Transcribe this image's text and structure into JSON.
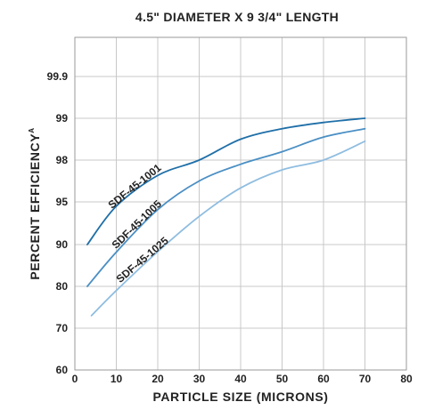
{
  "chart_data": {
    "type": "line",
    "title": "4.5\" DIAMETER X 9 3/4\" LENGTH",
    "xlabel": "PARTICLE SIZE (MICRONS)",
    "ylabel": "PERCENT EFFICIENCY",
    "ylabel_superscript": "A",
    "xlim": [
      0,
      80
    ],
    "x_ticks": [
      0,
      10,
      20,
      30,
      40,
      50,
      60,
      70,
      80
    ],
    "x_tick_labels": [
      "0",
      "10",
      "20",
      "30",
      "40",
      "50",
      "60",
      "70",
      "80"
    ],
    "y_scale": "probability (nonlinear efficiency scale)",
    "y_ticks": [
      60,
      70,
      80,
      90,
      95,
      98,
      99,
      99.9
    ],
    "y_tick_labels": [
      "60",
      "70",
      "80",
      "90",
      "95",
      "98",
      "99",
      "99.9"
    ],
    "y_extra_gridlines": [
      99.95
    ],
    "grid": true,
    "legend": "none (series labeled inline along curves)",
    "series": [
      {
        "name": "SDF-45-1001",
        "color": "#1f6fa8",
        "x": [
          3,
          10,
          20,
          30,
          40,
          50,
          60,
          70
        ],
        "y": [
          90,
          94.5,
          96.9,
          98.0,
          98.5,
          98.75,
          98.9,
          99.0
        ]
      },
      {
        "name": "SDF-45-1005",
        "color": "#4a8fc4",
        "x": [
          3,
          10,
          20,
          30,
          40,
          50,
          60,
          70
        ],
        "y": [
          80,
          88.2,
          94.1,
          96.5,
          97.7,
          98.2,
          98.55,
          98.75
        ]
      },
      {
        "name": "SDF-45-1025",
        "color": "#8fbde0",
        "x": [
          4,
          10,
          20,
          30,
          40,
          50,
          60,
          70
        ],
        "y": [
          73,
          79,
          88.3,
          93.3,
          96.0,
          97.3,
          98.0,
          98.45
        ]
      }
    ]
  }
}
